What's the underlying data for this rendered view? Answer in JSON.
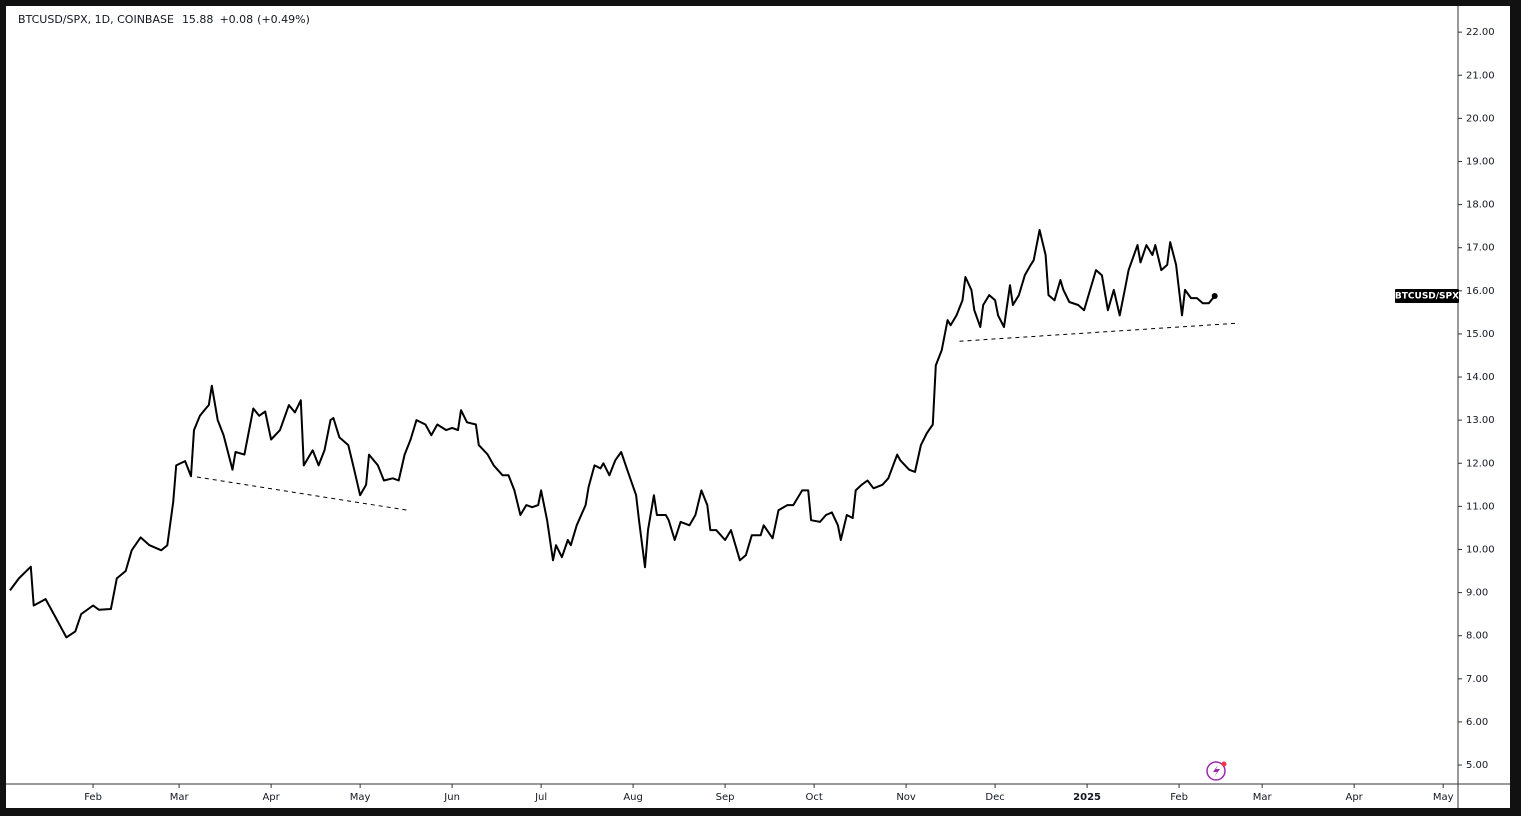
{
  "chart_data": {
    "type": "line",
    "symbol": "BTCUSD/SPX, 1D, COINBASE",
    "last_price": 15.88,
    "change": "+0.08",
    "change_pct": "(+0.49%)",
    "price_label": "BTCUSD/SPX",
    "color": "#000000",
    "x": [
      3,
      6,
      10,
      11,
      15,
      18,
      22,
      25,
      27,
      31,
      33,
      37,
      39,
      42,
      44,
      47,
      50,
      54,
      56,
      58,
      59,
      62,
      64,
      65,
      67,
      69,
      70,
      71,
      73,
      75,
      78,
      79,
      82,
      85,
      87,
      89,
      91,
      94,
      97,
      99,
      101,
      102,
      105,
      107,
      109,
      111,
      112,
      114,
      117,
      119,
      121,
      123,
      124,
      127,
      129,
      132,
      134,
      136,
      138,
      140,
      143,
      145,
      147,
      150,
      152,
      154,
      155,
      157,
      160,
      161,
      164,
      166,
      169,
      171,
      173,
      175,
      177,
      179,
      181,
      182,
      184,
      186,
      187,
      189,
      191,
      192,
      194,
      197,
      198,
      200,
      202,
      203,
      205,
      207,
      209,
      211,
      214,
      215,
      217,
      218,
      220,
      221,
      224,
      225,
      227,
      229,
      232,
      234,
      236,
      238,
      239,
      241,
      244,
      246,
      249,
      251,
      253,
      256,
      257,
      260,
      262,
      265,
      267,
      270,
      272,
      273,
      276,
      278,
      280,
      282,
      283,
      285,
      287,
      288,
      290,
      292,
      294,
      297,
      299,
      302,
      303,
      306,
      308,
      310,
      312,
      314,
      315,
      317,
      319,
      320,
      322,
      324,
      325,
      327,
      328,
      330,
      331,
      333,
      335,
      336,
      338,
      340,
      341,
      343,
      345,
      347,
      348,
      350,
      352,
      353,
      355,
      357,
      358,
      360,
      363,
      365,
      367,
      369,
      371,
      373,
      375,
      377,
      379,
      380,
      383,
      384,
      386,
      388,
      389,
      391,
      393,
      394,
      396,
      398,
      399,
      401,
      403,
      405,
      407,
      409
    ],
    "values": [
      9.05,
      9.33,
      9.6,
      8.7,
      8.85,
      8.47,
      7.96,
      8.1,
      8.5,
      8.7,
      8.6,
      8.62,
      9.33,
      9.5,
      9.98,
      10.28,
      10.1,
      9.98,
      10.1,
      11.1,
      11.95,
      12.05,
      11.7,
      12.77,
      13.1,
      13.27,
      13.35,
      13.8,
      13.0,
      12.65,
      11.85,
      12.26,
      12.2,
      13.27,
      13.1,
      13.2,
      12.55,
      12.77,
      13.35,
      13.18,
      13.46,
      11.95,
      12.3,
      11.95,
      12.3,
      13.0,
      13.05,
      12.6,
      12.42,
      11.85,
      11.26,
      11.5,
      12.2,
      11.95,
      11.6,
      11.65,
      11.6,
      12.2,
      12.55,
      13.0,
      12.9,
      12.65,
      12.9,
      12.77,
      12.82,
      12.77,
      13.23,
      12.95,
      12.9,
      12.42,
      12.2,
      11.95,
      11.72,
      11.72,
      11.37,
      10.8,
      11.03,
      10.98,
      11.03,
      11.37,
      10.68,
      9.75,
      10.1,
      9.82,
      10.22,
      10.1,
      10.56,
      11.03,
      11.45,
      11.95,
      11.88,
      12.0,
      11.72,
      12.07,
      12.26,
      11.85,
      11.26,
      10.68,
      9.59,
      10.45,
      11.26,
      10.8,
      10.8,
      10.68,
      10.22,
      10.64,
      10.56,
      10.8,
      11.37,
      11.03,
      10.45,
      10.45,
      10.22,
      10.45,
      9.75,
      9.87,
      10.33,
      10.33,
      10.56,
      10.26,
      10.91,
      11.03,
      11.03,
      11.37,
      11.37,
      10.68,
      10.64,
      10.8,
      10.86,
      10.56,
      10.22,
      10.8,
      10.73,
      11.37,
      11.5,
      11.6,
      11.42,
      11.5,
      11.65,
      12.2,
      12.07,
      11.85,
      11.8,
      12.42,
      12.7,
      12.9,
      14.27,
      14.62,
      15.32,
      15.2,
      15.43,
      15.78,
      16.32,
      16.02,
      15.55,
      15.16,
      15.67,
      15.9,
      15.78,
      15.43,
      15.16,
      16.13,
      15.67,
      15.9,
      16.36,
      16.6,
      16.71,
      17.41,
      16.83,
      15.9,
      15.78,
      16.25,
      16.02,
      15.74,
      15.67,
      15.55,
      16.02,
      16.48,
      16.36,
      15.55,
      16.02,
      15.43,
      16.13,
      16.48,
      17.06,
      16.66,
      17.06,
      16.83,
      17.06,
      16.48,
      16.6,
      17.13,
      16.6,
      15.43,
      16.02,
      15.83,
      15.83,
      15.71,
      15.71,
      15.88
    ],
    "trend_lines": [
      {
        "x": [
          66,
          137
        ],
        "values": [
          11.68,
          10.91
        ]
      },
      {
        "x": [
          323,
          417
        ],
        "values": [
          14.83,
          15.25
        ]
      }
    ],
    "xlim": [
      3,
      491
    ],
    "xticks": [
      {
        "value": 31,
        "label": "Feb"
      },
      {
        "value": 60,
        "label": "Mar"
      },
      {
        "value": 91,
        "label": "Apr"
      },
      {
        "value": 121,
        "label": "May"
      },
      {
        "value": 152,
        "label": "Jun"
      },
      {
        "value": 182,
        "label": "Jul"
      },
      {
        "value": 213,
        "label": "Aug"
      },
      {
        "value": 244,
        "label": "Sep"
      },
      {
        "value": 274,
        "label": "Oct"
      },
      {
        "value": 305,
        "label": "Nov"
      },
      {
        "value": 335,
        "label": "Dec"
      },
      {
        "value": 366,
        "label": "2025"
      },
      {
        "value": 397,
        "label": "Feb"
      },
      {
        "value": 425,
        "label": "Mar"
      },
      {
        "value": 456,
        "label": "Apr"
      },
      {
        "value": 486,
        "label": "May"
      }
    ],
    "ylim": [
      4.56,
      22.56
    ],
    "yticks": [
      {
        "value": 5,
        "label": "5.00"
      },
      {
        "value": 6,
        "label": "6.00"
      },
      {
        "value": 7,
        "label": "7.00"
      },
      {
        "value": 8,
        "label": "8.00"
      },
      {
        "value": 9,
        "label": "9.00"
      },
      {
        "value": 10,
        "label": "10.00"
      },
      {
        "value": 11,
        "label": "11.00"
      },
      {
        "value": 12,
        "label": "12.00"
      },
      {
        "value": 13,
        "label": "13.00"
      },
      {
        "value": 14,
        "label": "14.00"
      },
      {
        "value": 15,
        "label": "15.00"
      },
      {
        "value": 16,
        "label": "16.00"
      },
      {
        "value": 17,
        "label": "17.00"
      },
      {
        "value": 18,
        "label": "18.00"
      },
      {
        "value": 19,
        "label": "19.00"
      },
      {
        "value": 20,
        "label": "20.00"
      },
      {
        "value": 21,
        "label": "21.00"
      },
      {
        "value": 22,
        "label": "22.00"
      }
    ],
    "grid": false
  }
}
